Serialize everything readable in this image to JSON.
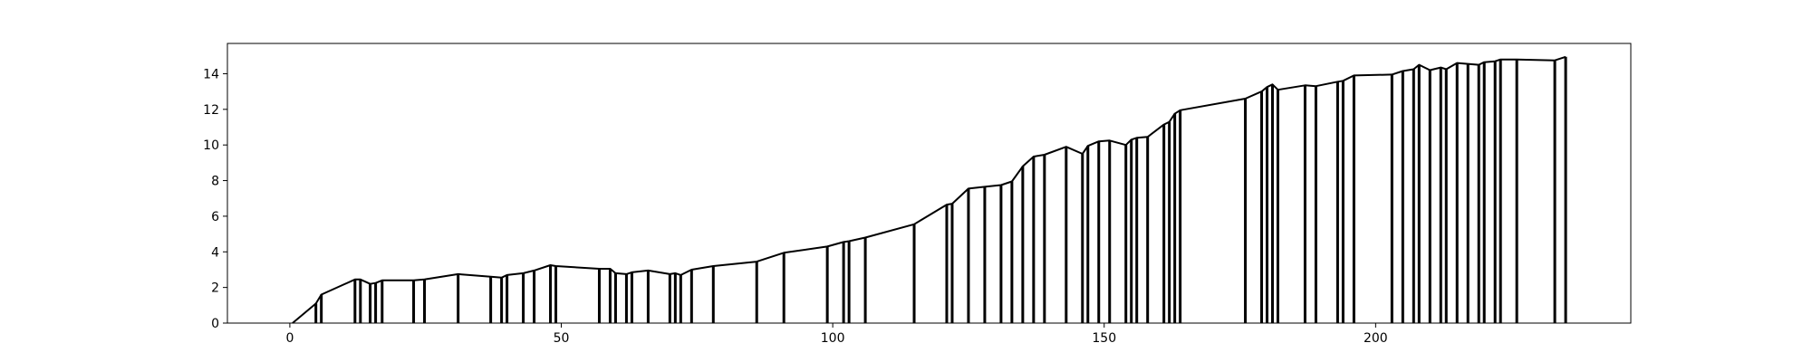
{
  "chart_data": {
    "type": "line",
    "title": "",
    "xlabel": "",
    "ylabel": "",
    "xlim": [
      -11.5,
      247
    ],
    "ylim": [
      0,
      15.7
    ],
    "grid": false,
    "x_ticks": [
      0,
      50,
      100,
      150,
      200
    ],
    "y_ticks": [
      0,
      2,
      4,
      6,
      8,
      10,
      12,
      14
    ],
    "series": [
      {
        "color": "#000000",
        "x": [
          0.5,
          4.8,
          5.8,
          12,
          13,
          14.8,
          15.8,
          17,
          22.8,
          24.8,
          31,
          37,
          39,
          40,
          43,
          45,
          48,
          49,
          57,
          59,
          60,
          62,
          63,
          66,
          70,
          71,
          72,
          74,
          78,
          86,
          91,
          99,
          102,
          103,
          106,
          115,
          121,
          122,
          125,
          128,
          131,
          133,
          135,
          137,
          139,
          143,
          146,
          147,
          149,
          151,
          154,
          155,
          156,
          158,
          161,
          162,
          163,
          164,
          176,
          179,
          180,
          181,
          182,
          187,
          189,
          193,
          194,
          196,
          203,
          205,
          207,
          208,
          210,
          212,
          213,
          215,
          217,
          219,
          220,
          222,
          223,
          226,
          233,
          235
        ],
        "y": [
          0,
          1.1,
          1.6,
          2.45,
          2.45,
          2.2,
          2.25,
          2.4,
          2.4,
          2.45,
          2.75,
          2.6,
          2.55,
          2.7,
          2.8,
          2.95,
          3.25,
          3.2,
          3.05,
          3.05,
          2.8,
          2.75,
          2.85,
          2.95,
          2.75,
          2.8,
          2.7,
          3.0,
          3.2,
          3.45,
          3.95,
          4.3,
          4.55,
          4.6,
          4.8,
          5.55,
          6.65,
          6.7,
          7.55,
          7.65,
          7.75,
          7.95,
          8.8,
          9.35,
          9.45,
          9.9,
          9.5,
          9.95,
          10.2,
          10.25,
          10.0,
          10.3,
          10.4,
          10.45,
          11.15,
          11.3,
          11.75,
          11.95,
          12.6,
          13.0,
          13.25,
          13.4,
          13.1,
          13.35,
          13.3,
          13.55,
          13.6,
          13.9,
          13.95,
          14.15,
          14.25,
          14.5,
          14.2,
          14.35,
          14.25,
          14.6,
          14.55,
          14.5,
          14.65,
          14.7,
          14.8,
          14.8,
          14.75,
          14.95
        ]
      }
    ]
  }
}
